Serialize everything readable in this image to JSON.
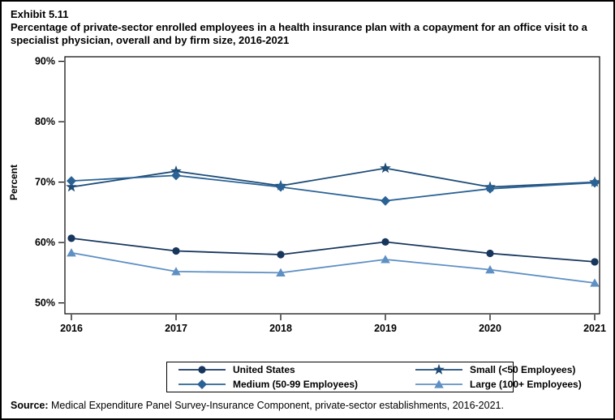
{
  "page": {
    "exhibit_label": "Exhibit 5.11",
    "title": "Percentage of private-sector enrolled employees in a health insurance plan with a copayment for an office visit to a specialist physician, overall and by firm size, 2016-2021",
    "source_label": "Source:",
    "source_text": " Medical Expenditure Panel Survey-Insurance Component, private-sector establishments, 2016-2021."
  },
  "chart_data": {
    "type": "line",
    "title": "Percentage of private-sector enrolled employees in a health insurance plan with a copayment for an office visit to a specialist physician, overall and by firm size, 2016-2021",
    "categories": [
      "2016",
      "2017",
      "2018",
      "2019",
      "2020",
      "2021"
    ],
    "xlabel": "",
    "ylabel": "Percent",
    "ylim": [
      50,
      90
    ],
    "ytick_step": 10,
    "ytick_suffix": "%",
    "grid": false,
    "legend_position": "bottom",
    "series": [
      {
        "name": "United States",
        "marker": "circle",
        "color": "#17365D",
        "values": [
          60.7,
          58.6,
          58.0,
          60.1,
          58.2,
          56.8
        ]
      },
      {
        "name": "Small (<50 Employees)",
        "marker": "star",
        "color": "#1E4C77",
        "values": [
          69.2,
          71.8,
          69.4,
          72.3,
          69.2,
          70.0
        ]
      },
      {
        "name": "Medium (50-99 Employees)",
        "marker": "diamond",
        "color": "#2A6295",
        "values": [
          70.2,
          71.1,
          69.2,
          66.9,
          68.9,
          69.9
        ]
      },
      {
        "name": "Large (100+ Employees)",
        "marker": "triangle",
        "color": "#5F90C4",
        "values": [
          58.3,
          55.2,
          55.0,
          57.2,
          55.5,
          53.3
        ]
      }
    ],
    "legend_order": [
      "United States",
      "Small (<50 Employees)",
      "Medium (50-99 Employees)",
      "Large (100+ Employees)"
    ]
  }
}
